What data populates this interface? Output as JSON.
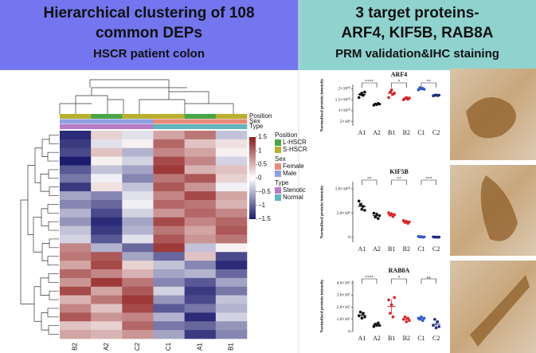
{
  "header": {
    "left_title": [
      "Hierarchical clustering of 108",
      "common DEPs"
    ],
    "left_subtitle": "HSCR patient colon",
    "right_title": [
      "3 target proteins-",
      "ARF4, KIF5B, RAB8A"
    ],
    "right_subtitle": "PRM validation&IHC staining"
  },
  "chart_data": [
    {
      "type": "heatmap",
      "columns": [
        "B2",
        "A2",
        "C2",
        "C1",
        "A1",
        "B1"
      ],
      "values": [
        [
          -1.4,
          0.3,
          -0.2,
          0.6,
          0.9,
          -0.4
        ],
        [
          -1.3,
          -0.2,
          0.1,
          1.0,
          0.4,
          0.2
        ],
        [
          -1.2,
          0.4,
          -0.5,
          0.8,
          0.6,
          0.1
        ],
        [
          -1.5,
          0.1,
          -0.3,
          1.2,
          0.8,
          -0.3
        ],
        [
          -1.1,
          -0.4,
          -0.6,
          1.3,
          0.5,
          0.4
        ],
        [
          -0.9,
          -0.1,
          -0.8,
          0.9,
          1.1,
          0.3
        ],
        [
          -1.3,
          0.2,
          -0.4,
          1.1,
          0.7,
          -0.1
        ],
        [
          -0.6,
          -0.8,
          -0.2,
          0.8,
          1.2,
          0.6
        ],
        [
          -0.8,
          -1.0,
          -0.1,
          1.0,
          0.9,
          0.5
        ],
        [
          -0.5,
          -1.2,
          -0.3,
          0.7,
          1.0,
          0.8
        ],
        [
          -0.7,
          -1.4,
          -0.6,
          1.2,
          0.8,
          1.0
        ],
        [
          -0.4,
          -1.3,
          -0.5,
          0.9,
          0.6,
          1.1
        ],
        [
          -0.3,
          -1.1,
          -0.2,
          1.1,
          0.7,
          0.9
        ],
        [
          0.8,
          -0.5,
          -1.0,
          1.3,
          -0.4,
          0.1
        ],
        [
          0.9,
          1.1,
          -0.6,
          -1.0,
          0.4,
          -1.2
        ],
        [
          0.6,
          1.2,
          0.3,
          -0.4,
          -0.8,
          -1.4
        ],
        [
          1.0,
          0.8,
          0.5,
          -0.6,
          -0.5,
          -1.0
        ],
        [
          0.7,
          1.3,
          0.9,
          -0.8,
          -1.1,
          -0.6
        ],
        [
          1.2,
          0.6,
          1.1,
          -0.3,
          -1.3,
          -0.9
        ],
        [
          0.5,
          0.9,
          1.3,
          -0.7,
          -1.2,
          -0.4
        ],
        [
          0.8,
          0.4,
          1.2,
          -1.1,
          -0.9,
          -0.5
        ],
        [
          1.1,
          0.7,
          0.8,
          -0.5,
          -1.4,
          -0.3
        ],
        [
          0.4,
          0.3,
          1.0,
          -0.9,
          -1.0,
          -0.7
        ],
        [
          0.6,
          0.5,
          0.7,
          -0.6,
          -1.3,
          -0.8
        ]
      ],
      "colorbar": {
        "lim": [
          -1.5,
          1.5
        ],
        "colors": [
          "#1c1c6e",
          "#ffffff",
          "#8e1b1b"
        ],
        "ticks": [
          {
            "value": 1.5,
            "label": "1.5"
          },
          {
            "value": 1,
            "label": "1"
          },
          {
            "value": 0.5,
            "label": "0.5"
          },
          {
            "value": 0,
            "label": "0"
          },
          {
            "value": -0.5,
            "label": "−0.5"
          },
          {
            "value": -1,
            "label": "−1"
          },
          {
            "value": -1.5,
            "label": "−1.5"
          }
        ]
      },
      "annotations": [
        {
          "name": "Position",
          "values": [
            "S-HSCR",
            "L-HSCR",
            "S-HSCR",
            "S-HSCR",
            "L-HSCR",
            "S-HSCR"
          ],
          "levels": [
            {
              "name": "L-HSCR",
              "color": "#4aa546"
            },
            {
              "name": "S-HSCR",
              "color": "#b9b02e"
            }
          ]
        },
        {
          "name": "Sex",
          "values": [
            "Male",
            "Male",
            "Male",
            "Female",
            "Female",
            "Female"
          ],
          "levels": [
            {
              "name": "Female",
              "color": "#e58b78"
            },
            {
              "name": "Male",
              "color": "#8f9fe0"
            }
          ]
        },
        {
          "name": "Type",
          "values": [
            "Stenotic",
            "Stenotic",
            "Stenotic",
            "Normal",
            "Normal",
            "Normal"
          ],
          "levels": [
            {
              "name": "Stenotic",
              "color": "#b77bc7"
            },
            {
              "name": "Normal",
              "color": "#5fb6bd"
            }
          ]
        }
      ]
    },
    {
      "type": "dot",
      "title": "ARF4",
      "y_label": "Normalised protein intensity",
      "categories": [
        "A1",
        "A2",
        "B1",
        "B2",
        "C1",
        "C2"
      ],
      "colors": [
        "#111111",
        "#111111",
        "#d22",
        "#d22",
        "#2a57c9",
        "#1c2a80"
      ],
      "points": [
        [
          16000000000.0,
          17500000000.0,
          18000000000.0,
          17000000000.0,
          18500000000.0
        ],
        [
          12500000000.0,
          13000000000.0,
          12800000000.0,
          13300000000.0,
          13000000000.0
        ],
        [
          16000000000.0,
          18500000000.0,
          19500000000.0,
          17500000000.0,
          18000000000.0
        ],
        [
          15000000000.0,
          15500000000.0,
          16000000000.0,
          15200000000.0,
          15800000000.0
        ],
        [
          19500000000.0,
          20500000000.0,
          20000000000.0,
          20200000000.0,
          19800000000.0
        ],
        [
          16800000000.0,
          17000000000.0,
          17200000000.0,
          16900000000.0,
          17100000000.0
        ]
      ],
      "means": [
        17400000000.0,
        12900000000.0,
        17900000000.0,
        15500000000.0,
        20000000000.0,
        17000000000.0
      ],
      "sd": [
        900000000.0,
        300000000.0,
        1200000000.0,
        400000000.0,
        400000000.0,
        200000000.0
      ],
      "ylim": [
        3000000000.0,
        22000000000.0
      ],
      "yticks": [
        {
          "value": 5000000000.0,
          "label": "5×10⁹"
        },
        {
          "value": 10000000000.0,
          "label": "1×10¹⁰"
        },
        {
          "value": 15000000000.0,
          "label": "1.5×10¹⁰"
        },
        {
          "value": 20000000000.0,
          "label": "2×10¹⁰"
        }
      ],
      "significance": [
        "****",
        "*",
        "**"
      ]
    },
    {
      "type": "dot",
      "title": "KIF5B",
      "y_label": "Normalised protein intensity",
      "categories": [
        "A1",
        "A2",
        "B1",
        "B2",
        "C1",
        "C2"
      ],
      "colors": [
        "#111111",
        "#111111",
        "#d22",
        "#d22",
        "#2a57c9",
        "#1c2a80"
      ],
      "points": [
        [
          7500000000.0,
          6800000000.0,
          5800000000.0,
          6400000000.0,
          5600000000.0
        ],
        [
          5000000000.0,
          4200000000.0,
          4800000000.0,
          3900000000.0,
          4500000000.0
        ],
        [
          5100000000.0,
          4600000000.0,
          4900000000.0,
          4300000000.0,
          4700000000.0
        ],
        [
          3500000000.0,
          3100000000.0,
          3300000000.0,
          2900000000.0,
          3200000000.0
        ],
        [
          200000000.0,
          100000000.0,
          150000000.0,
          50000000.0,
          100000000.0
        ],
        [
          100000000.0,
          50000000.0,
          80000000.0,
          30000000.0,
          60000000.0
        ]
      ],
      "means": [
        6400000000.0,
        4500000000.0,
        4700000000.0,
        3200000000.0,
        120000000.0,
        60000000.0
      ],
      "sd": [
        800000000.0,
        400000000.0,
        300000000.0,
        200000000.0,
        50000000.0,
        30000000.0
      ],
      "ylim": [
        -1000000000.0,
        11500000000.0
      ],
      "yticks": [
        0,
        {
          "value": 5000000000.0,
          "label": "5.0×10⁹"
        },
        {
          "value": 10000000000.0,
          "label": "1.0×10¹⁰"
        }
      ],
      "significance": [
        "**",
        "**",
        "***"
      ]
    },
    {
      "type": "dot",
      "title": "RAB8A",
      "y_label": "Normalised protein intensity",
      "categories": [
        "A1",
        "A2",
        "B1",
        "B2",
        "C1",
        "C2"
      ],
      "colors": [
        "#111111",
        "#111111",
        "#d22",
        "#d22",
        "#2a57c9",
        "#1c2a80"
      ],
      "points": [
        [
          13000000.0,
          16000000.0,
          11000000.0,
          15000000.0,
          12000000.0
        ],
        [
          4000000.0,
          6000000.0,
          5000000.0,
          7000000.0,
          5000000.0
        ],
        [
          26000000.0,
          15000000.0,
          22000000.0,
          12000000.0,
          28000000.0
        ],
        [
          10000000.0,
          12000000.0,
          8000000.0,
          11000000.0,
          9000000.0
        ],
        [
          11000000.0,
          10000000.0,
          12000000.0,
          9000000.0,
          11000000.0
        ],
        [
          5000000.0,
          10000000.0,
          3000000.0,
          8000000.0,
          4000000.0
        ]
      ],
      "means": [
        13400000.0,
        5400000.0,
        20600000.0,
        10000000.0,
        10600000.0,
        6000000.0
      ],
      "sd": [
        2000000.0,
        1100000.0,
        6000000.0,
        1600000.0,
        1100000.0,
        2800000.0
      ],
      "ylim": [
        0,
        42000000.0
      ],
      "yticks": [
        0,
        {
          "value": 10000000.0,
          "label": "1.0×10⁷"
        },
        {
          "value": 20000000.0,
          "label": "2.0×10⁷"
        },
        {
          "value": 30000000.0,
          "label": "3.0×10⁷"
        },
        {
          "value": 40000000.0,
          "label": "4.0×10⁷"
        }
      ],
      "significance": [
        "****",
        "*",
        "ns"
      ]
    }
  ]
}
